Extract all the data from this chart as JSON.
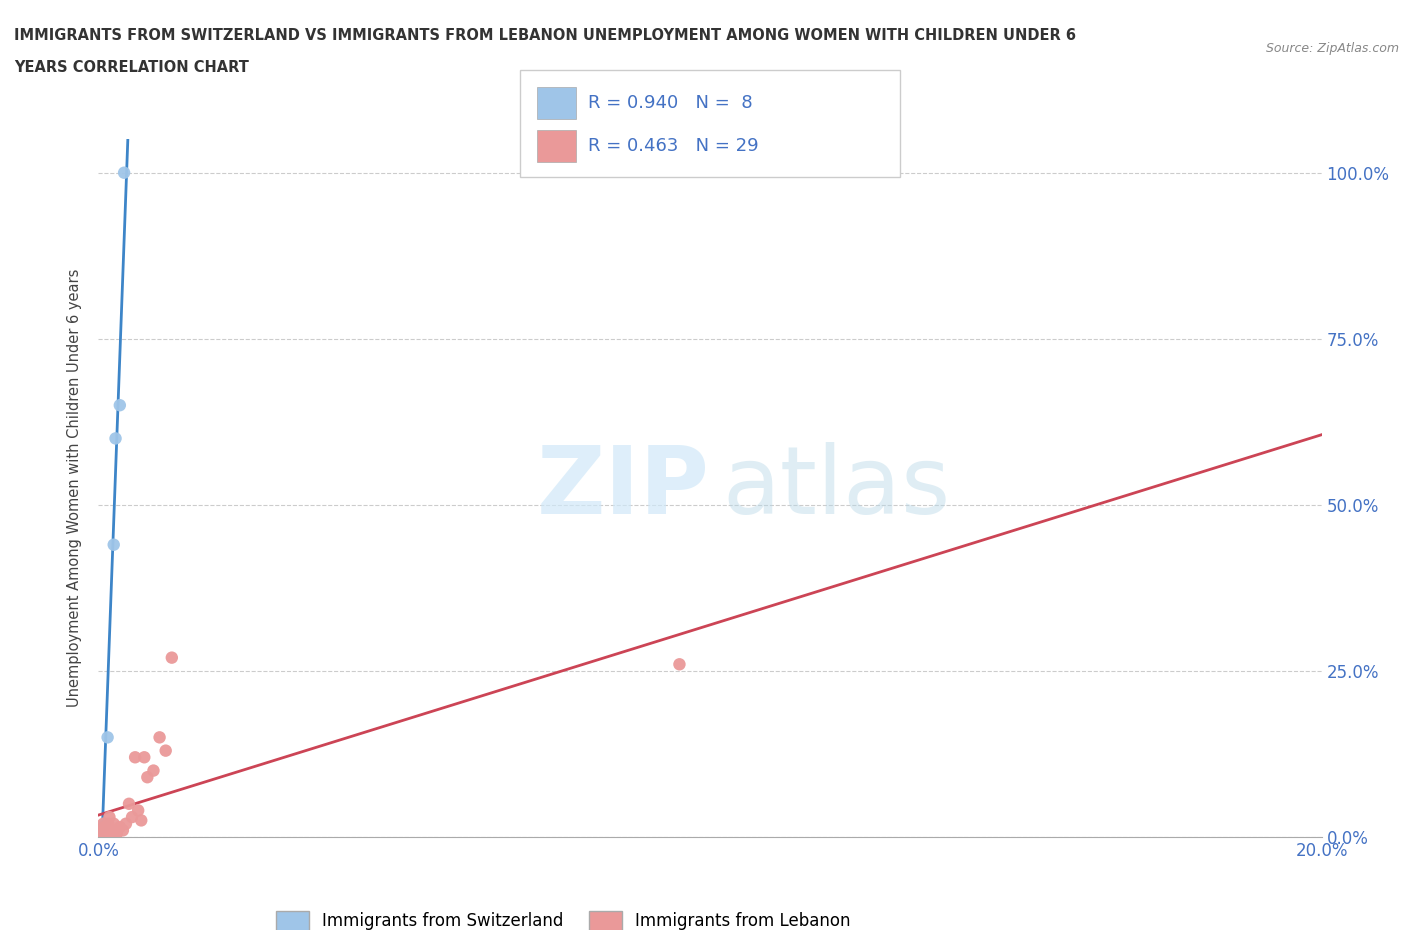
{
  "title_line1": "IMMIGRANTS FROM SWITZERLAND VS IMMIGRANTS FROM LEBANON UNEMPLOYMENT AMONG WOMEN WITH CHILDREN UNDER 6",
  "title_line2": "YEARS CORRELATION CHART",
  "source": "Source: ZipAtlas.com",
  "ylabel": "Unemployment Among Women with Children Under 6 years",
  "watermark_zip": "ZIP",
  "watermark_atlas": "atlas",
  "switzerland_color": "#9fc5e8",
  "lebanon_color": "#ea9999",
  "switzerland_line_color": "#3d85c8",
  "lebanon_line_color": "#cc4455",
  "R_switzerland": 0.94,
  "N_switzerland": 8,
  "R_lebanon": 0.463,
  "N_lebanon": 29,
  "switzerland_points_x": [
    0.0,
    0.08,
    0.1,
    0.15,
    0.25,
    0.28,
    0.35,
    0.42
  ],
  "switzerland_points_y": [
    0.0,
    1.5,
    2.0,
    15.0,
    44.0,
    60.0,
    65.0,
    100.0
  ],
  "lebanon_points_x": [
    0.0,
    0.04,
    0.06,
    0.08,
    0.1,
    0.12,
    0.14,
    0.16,
    0.18,
    0.2,
    0.22,
    0.25,
    0.28,
    0.3,
    0.35,
    0.4,
    0.45,
    0.5,
    0.55,
    0.6,
    0.65,
    0.7,
    0.75,
    0.8,
    0.9,
    1.0,
    1.1,
    1.2,
    9.5
  ],
  "lebanon_points_y": [
    0.0,
    1.0,
    0.5,
    2.0,
    1.5,
    0.0,
    1.0,
    2.0,
    3.0,
    0.0,
    1.0,
    2.0,
    0.0,
    0.5,
    1.5,
    1.0,
    2.0,
    5.0,
    3.0,
    12.0,
    4.0,
    2.5,
    12.0,
    9.0,
    10.0,
    15.0,
    13.0,
    27.0,
    26.0
  ],
  "xlim": [
    0,
    20.0
  ],
  "ylim": [
    0,
    105.0
  ],
  "xticks": [
    0,
    20.0
  ],
  "xticklabels": [
    "0.0%",
    "20.0%"
  ],
  "yticks": [
    0,
    25,
    50,
    75,
    100
  ],
  "yticklabels_right": [
    "0.0%",
    "25.0%",
    "50.0%",
    "75.0%",
    "100.0%"
  ],
  "legend_label_sw": "Immigrants from Switzerland",
  "legend_label_lb": "Immigrants from Lebanon",
  "background_color": "#ffffff"
}
